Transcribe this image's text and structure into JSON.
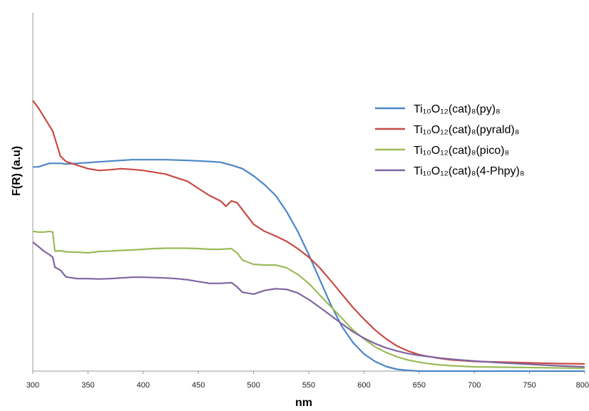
{
  "chart_data": {
    "type": "line",
    "xlabel": "nm",
    "ylabel": "F(R) (a.u)",
    "xlim": [
      300,
      800
    ],
    "ylim": [
      0,
      1
    ],
    "x_ticks": [
      "300",
      "350",
      "400",
      "450",
      "500",
      "550",
      "600",
      "650",
      "700",
      "750",
      "800"
    ],
    "grid": false,
    "legend_position": "right",
    "series": [
      {
        "name": "Ti₁₀O₁₂(cat)₈(py)₈",
        "color": "#4A86C8",
        "points": [
          [
            300,
            0.57
          ],
          [
            305,
            0.57
          ],
          [
            310,
            0.575
          ],
          [
            315,
            0.58
          ],
          [
            320,
            0.58
          ],
          [
            325,
            0.58
          ],
          [
            330,
            0.578
          ],
          [
            340,
            0.58
          ],
          [
            350,
            0.582
          ],
          [
            360,
            0.584
          ],
          [
            370,
            0.586
          ],
          [
            380,
            0.588
          ],
          [
            390,
            0.59
          ],
          [
            400,
            0.59
          ],
          [
            420,
            0.59
          ],
          [
            440,
            0.588
          ],
          [
            460,
            0.585
          ],
          [
            470,
            0.583
          ],
          [
            480,
            0.575
          ],
          [
            490,
            0.565
          ],
          [
            500,
            0.545
          ],
          [
            510,
            0.52
          ],
          [
            520,
            0.49
          ],
          [
            530,
            0.445
          ],
          [
            540,
            0.39
          ],
          [
            550,
            0.325
          ],
          [
            560,
            0.255
          ],
          [
            570,
            0.185
          ],
          [
            580,
            0.125
          ],
          [
            590,
            0.08
          ],
          [
            600,
            0.048
          ],
          [
            610,
            0.027
          ],
          [
            620,
            0.013
          ],
          [
            630,
            0.005
          ],
          [
            640,
            0.002
          ],
          [
            650,
            0.0
          ],
          [
            700,
            0.0
          ],
          [
            800,
            0.0
          ]
        ]
      },
      {
        "name": "Ti₁₀O₁₂(cat)₈(pyrald)₈",
        "color": "#C84B45",
        "points": [
          [
            300,
            0.755
          ],
          [
            305,
            0.735
          ],
          [
            310,
            0.71
          ],
          [
            315,
            0.685
          ],
          [
            318,
            0.67
          ],
          [
            320,
            0.65
          ],
          [
            325,
            0.6
          ],
          [
            330,
            0.585
          ],
          [
            340,
            0.575
          ],
          [
            350,
            0.565
          ],
          [
            360,
            0.56
          ],
          [
            370,
            0.562
          ],
          [
            380,
            0.565
          ],
          [
            390,
            0.563
          ],
          [
            400,
            0.56
          ],
          [
            410,
            0.555
          ],
          [
            420,
            0.55
          ],
          [
            430,
            0.54
          ],
          [
            440,
            0.53
          ],
          [
            450,
            0.51
          ],
          [
            460,
            0.49
          ],
          [
            470,
            0.475
          ],
          [
            475,
            0.46
          ],
          [
            480,
            0.475
          ],
          [
            485,
            0.47
          ],
          [
            490,
            0.45
          ],
          [
            500,
            0.41
          ],
          [
            510,
            0.39
          ],
          [
            520,
            0.377
          ],
          [
            530,
            0.362
          ],
          [
            540,
            0.342
          ],
          [
            550,
            0.318
          ],
          [
            560,
            0.288
          ],
          [
            570,
            0.252
          ],
          [
            580,
            0.215
          ],
          [
            590,
            0.178
          ],
          [
            600,
            0.145
          ],
          [
            610,
            0.115
          ],
          [
            620,
            0.09
          ],
          [
            630,
            0.07
          ],
          [
            640,
            0.056
          ],
          [
            650,
            0.046
          ],
          [
            660,
            0.04
          ],
          [
            670,
            0.035
          ],
          [
            680,
            0.031
          ],
          [
            700,
            0.027
          ],
          [
            725,
            0.025
          ],
          [
            750,
            0.023
          ],
          [
            775,
            0.021
          ],
          [
            800,
            0.02
          ]
        ]
      },
      {
        "name": "Ti₁₀O₁₂(cat)₈(pico)₈",
        "color": "#9BBB59",
        "points": [
          [
            300,
            0.39
          ],
          [
            305,
            0.388
          ],
          [
            310,
            0.388
          ],
          [
            315,
            0.39
          ],
          [
            318,
            0.388
          ],
          [
            320,
            0.335
          ],
          [
            325,
            0.336
          ],
          [
            330,
            0.333
          ],
          [
            340,
            0.332
          ],
          [
            350,
            0.33
          ],
          [
            360,
            0.334
          ],
          [
            370,
            0.335
          ],
          [
            380,
            0.337
          ],
          [
            390,
            0.338
          ],
          [
            400,
            0.34
          ],
          [
            410,
            0.342
          ],
          [
            420,
            0.343
          ],
          [
            430,
            0.343
          ],
          [
            440,
            0.343
          ],
          [
            450,
            0.342
          ],
          [
            460,
            0.34
          ],
          [
            470,
            0.34
          ],
          [
            480,
            0.342
          ],
          [
            485,
            0.33
          ],
          [
            490,
            0.31
          ],
          [
            500,
            0.298
          ],
          [
            510,
            0.296
          ],
          [
            520,
            0.296
          ],
          [
            530,
            0.288
          ],
          [
            540,
            0.27
          ],
          [
            550,
            0.245
          ],
          [
            560,
            0.212
          ],
          [
            570,
            0.18
          ],
          [
            580,
            0.148
          ],
          [
            590,
            0.115
          ],
          [
            600,
            0.09
          ],
          [
            610,
            0.068
          ],
          [
            620,
            0.052
          ],
          [
            630,
            0.04
          ],
          [
            640,
            0.031
          ],
          [
            650,
            0.025
          ],
          [
            660,
            0.02
          ],
          [
            670,
            0.017
          ],
          [
            680,
            0.015
          ],
          [
            700,
            0.012
          ],
          [
            750,
            0.01
          ],
          [
            800,
            0.008
          ]
        ]
      },
      {
        "name": "Ti₁₀O₁₂(cat)₈(4-Phpy)₈",
        "color": "#8064A2",
        "points": [
          [
            300,
            0.36
          ],
          [
            305,
            0.348
          ],
          [
            310,
            0.335
          ],
          [
            315,
            0.325
          ],
          [
            318,
            0.318
          ],
          [
            320,
            0.29
          ],
          [
            325,
            0.282
          ],
          [
            330,
            0.263
          ],
          [
            340,
            0.258
          ],
          [
            350,
            0.258
          ],
          [
            360,
            0.257
          ],
          [
            370,
            0.258
          ],
          [
            380,
            0.26
          ],
          [
            390,
            0.262
          ],
          [
            400,
            0.262
          ],
          [
            410,
            0.261
          ],
          [
            420,
            0.26
          ],
          [
            430,
            0.258
          ],
          [
            440,
            0.255
          ],
          [
            450,
            0.25
          ],
          [
            460,
            0.245
          ],
          [
            470,
            0.245
          ],
          [
            480,
            0.247
          ],
          [
            485,
            0.235
          ],
          [
            490,
            0.22
          ],
          [
            500,
            0.215
          ],
          [
            510,
            0.225
          ],
          [
            520,
            0.23
          ],
          [
            530,
            0.228
          ],
          [
            540,
            0.218
          ],
          [
            550,
            0.2
          ],
          [
            560,
            0.178
          ],
          [
            570,
            0.155
          ],
          [
            580,
            0.132
          ],
          [
            590,
            0.11
          ],
          [
            600,
            0.092
          ],
          [
            610,
            0.077
          ],
          [
            620,
            0.065
          ],
          [
            630,
            0.056
          ],
          [
            640,
            0.049
          ],
          [
            650,
            0.044
          ],
          [
            660,
            0.04
          ],
          [
            670,
            0.036
          ],
          [
            680,
            0.033
          ],
          [
            700,
            0.028
          ],
          [
            725,
            0.023
          ],
          [
            750,
            0.019
          ],
          [
            775,
            0.015
          ],
          [
            800,
            0.012
          ]
        ]
      }
    ]
  }
}
